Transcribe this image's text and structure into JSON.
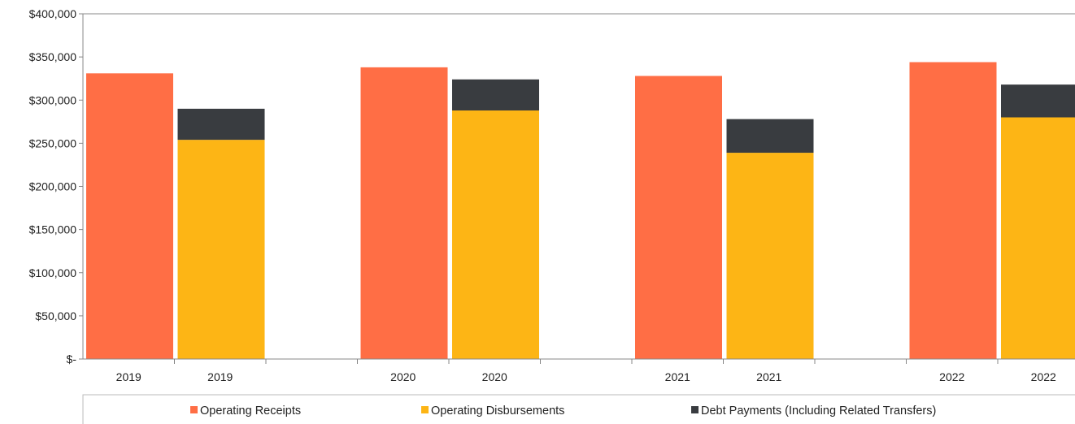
{
  "chart_data": {
    "type": "bar",
    "stacked_groups": true,
    "ylim": [
      0,
      400000
    ],
    "yticks": [
      {
        "value": 400000,
        "label": "$400,000"
      },
      {
        "value": 350000,
        "label": "$350,000"
      },
      {
        "value": 300000,
        "label": "$300,000"
      },
      {
        "value": 250000,
        "label": "$250,000"
      },
      {
        "value": 200000,
        "label": "$200,000"
      },
      {
        "value": 150000,
        "label": "$150,000"
      },
      {
        "value": 100000,
        "label": "$100,000"
      },
      {
        "value": 50000,
        "label": "$50,000"
      },
      {
        "value": 0,
        "label": "$-"
      }
    ],
    "categories": [
      "2019",
      "2019",
      "2020",
      "2020",
      "2021",
      "2021",
      "2022",
      "2022"
    ],
    "series": [
      {
        "name": "Operating Receipts",
        "color": "#FF6E45",
        "values": [
          331000,
          null,
          338000,
          null,
          328000,
          null,
          344000,
          null
        ]
      },
      {
        "name": "Operating Disbursements",
        "color": "#FDB515",
        "values": [
          null,
          254000,
          null,
          288000,
          null,
          239000,
          null,
          280000
        ]
      },
      {
        "name": "Debt Payments (Including Related Transfers)",
        "color": "#393C40",
        "values": [
          null,
          36000,
          null,
          36000,
          null,
          39000,
          null,
          38000
        ]
      }
    ],
    "grid": false,
    "legend_position": "bottom"
  }
}
